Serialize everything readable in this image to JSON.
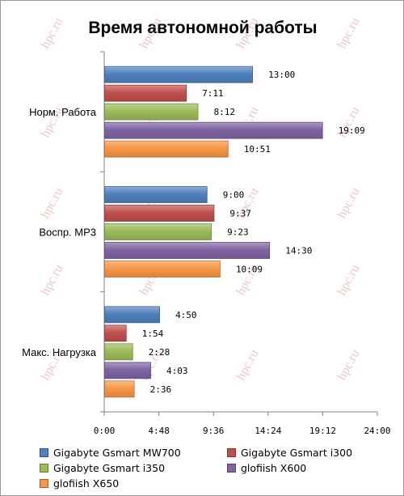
{
  "chart_data": {
    "type": "bar",
    "orientation": "horizontal",
    "title": "Время автономной работы",
    "categories": [
      "Норм. Работа",
      "Воспр. MP3",
      "Макс. Нагрузка"
    ],
    "x_ticks": [
      "0:00",
      "4:48",
      "9:36",
      "14:24",
      "19:12",
      "24:00"
    ],
    "xlim_minutes": [
      0,
      1440
    ],
    "legend_position": "bottom",
    "grid": false,
    "series": [
      {
        "name": "Gigabyte Gsmart MW700",
        "color": "#4f81bd",
        "values_minutes": [
          780,
          540,
          290
        ],
        "labels": [
          "13:00",
          "9:00",
          "4:50"
        ]
      },
      {
        "name": "Gigabyte Gsmart i300",
        "color": "#c0504d",
        "values_minutes": [
          431,
          577,
          114
        ],
        "labels": [
          "7:11",
          "9:37",
          "1:54"
        ]
      },
      {
        "name": "Gigabyte Gsmart i350",
        "color": "#9bbb59",
        "values_minutes": [
          492,
          563,
          148
        ],
        "labels": [
          "8:12",
          "9:23",
          "2:28"
        ]
      },
      {
        "name": "glofiish X600",
        "color": "#8064a2",
        "values_minutes": [
          1149,
          870,
          243
        ],
        "labels": [
          "19:09",
          "14:30",
          "4:03"
        ]
      },
      {
        "name": "glofiish X650",
        "color": "#f79646",
        "values_minutes": [
          651,
          609,
          156
        ],
        "labels": [
          "10:51",
          "10:09",
          "2:36"
        ]
      }
    ]
  },
  "watermark": "hpc.ru"
}
